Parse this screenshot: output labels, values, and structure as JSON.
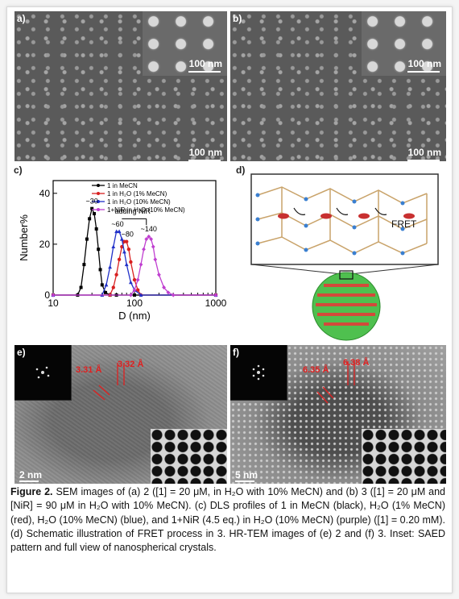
{
  "panels": {
    "a": {
      "label": "a)",
      "inset_scale": "100 nm",
      "main_scale": "100 nm"
    },
    "b": {
      "label": "b)",
      "inset_scale": "100 nm",
      "main_scale": "100 nm"
    },
    "c": {
      "label": "c)"
    },
    "d": {
      "label": "d)",
      "fret_text": "FRET"
    },
    "e": {
      "label": "e)",
      "scale": "2 nm",
      "d1": "3.31 Å",
      "d2": "3.32 Å"
    },
    "f": {
      "label": "f)",
      "scale": "5 nm",
      "d1": "6.35 Å",
      "d2": "6.38 Å"
    }
  },
  "chart_data": {
    "type": "line",
    "xscale": "log",
    "xlim": [
      10,
      1000
    ],
    "ylim": [
      0,
      45
    ],
    "xlabel": "D (nm)",
    "ylabel": "Number%",
    "xticks": [
      "10",
      "100",
      "1000"
    ],
    "yticks": [
      "0",
      "20",
      "40"
    ],
    "legend_position": "top-right",
    "series": [
      {
        "name": "1 in MeCN",
        "color": "#000000",
        "marker": "square",
        "x": [
          10,
          20,
          22,
          24,
          26,
          28,
          30,
          32,
          34,
          36,
          38,
          40,
          44,
          50,
          60,
          100,
          1000
        ],
        "y": [
          0,
          0,
          3,
          12,
          22,
          30,
          34,
          32,
          26,
          18,
          10,
          4,
          1,
          0,
          0,
          0,
          0
        ]
      },
      {
        "name": "1 in H₂O (1% MeCN)",
        "color": "#d82020",
        "marker": "circle",
        "x": [
          10,
          50,
          55,
          60,
          65,
          70,
          75,
          80,
          85,
          90,
          100,
          110,
          120,
          1000
        ],
        "y": [
          0,
          0,
          3,
          8,
          14,
          19,
          21,
          21,
          18,
          13,
          6,
          2,
          0,
          0
        ]
      },
      {
        "name": "1 in H₂O (10% MeCN)",
        "color": "#2030c8",
        "marker": "triangle",
        "x": [
          10,
          40,
          45,
          50,
          55,
          60,
          65,
          70,
          75,
          80,
          90,
          100,
          120,
          1000
        ],
        "y": [
          0,
          0,
          4,
          11,
          19,
          25,
          25,
          22,
          17,
          12,
          5,
          2,
          0,
          0
        ]
      },
      {
        "name": "1+NiR in H₂O (10% MeCN)",
        "color": "#c040d0",
        "marker": "diamond",
        "x": [
          10,
          90,
          100,
          110,
          120,
          130,
          140,
          150,
          160,
          170,
          180,
          200,
          230,
          260,
          300,
          1000
        ],
        "y": [
          0,
          0,
          2,
          6,
          12,
          18,
          22,
          23,
          22,
          19,
          14,
          8,
          3,
          1,
          0,
          0
        ]
      }
    ],
    "annotations": [
      {
        "text": "~30"
      },
      {
        "text": "~60"
      },
      {
        "text": "~80"
      },
      {
        "text": "~140"
      },
      {
        "text": "adding NiR"
      }
    ]
  },
  "caption": {
    "lead": "Figure 2.",
    "text": "SEM images of (a) 2 ([1] = 20 μM, in H₂O with 10% MeCN) and (b) 3 ([1] = 20 μM and [NiR] = 90 μM in H₂O with 10% MeCN). (c) DLS profiles of 1 in MeCN (black), H₂O (1% MeCN) (red), H₂O (10% MeCN) (blue), and 1+NiR (4.5 eq.) in H₂O (10% MeCN) (purple) ([1] = 0.20 mM). (d) Schematic illustration of FRET process in 3. HR-TEM images of (e) 2 and (f) 3. Inset: SAED pattern and full view of nanospherical crystals."
  }
}
